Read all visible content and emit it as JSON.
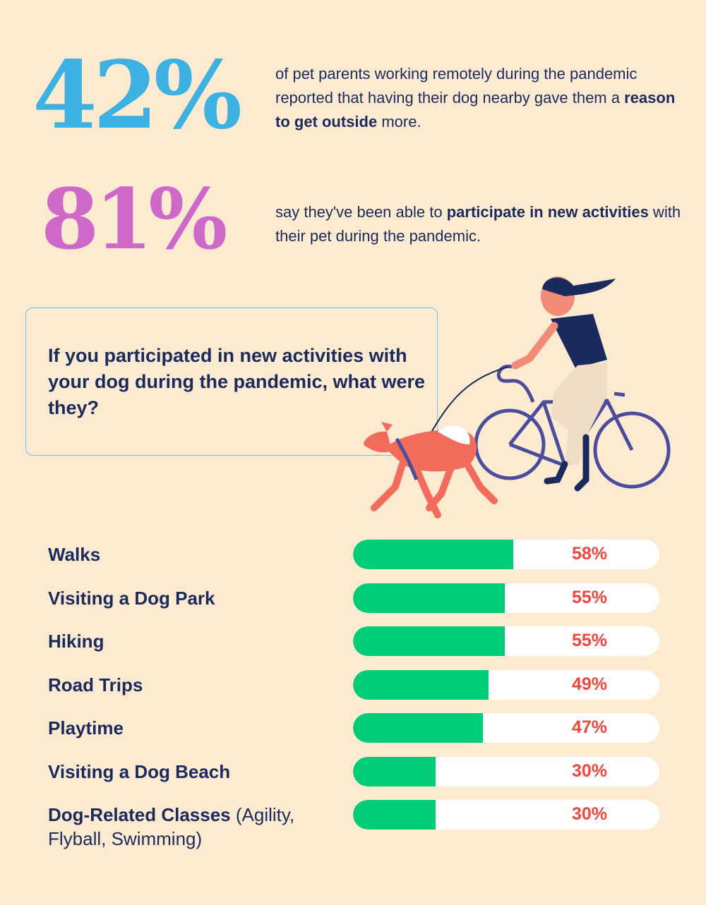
{
  "stats": [
    {
      "value": "42%",
      "text_before": "of pet parents working remotely during the pandemic reported that having their dog nearby gave them a ",
      "text_bold": "reason to get outside",
      "text_after": " more.",
      "color": "#3eb1e3"
    },
    {
      "value": "81%",
      "text_before": "say they've been able to ",
      "text_bold": "participate in new activities",
      "text_after": " with their pet during the pandemic.",
      "color": "#cf69c9"
    }
  ],
  "question": "If you participated in new activities with your dog during the pandemic, what were they?",
  "colors": {
    "background": "#fdebd1",
    "bar_fill": "#00cc78",
    "bar_track": "#ffffff",
    "percent_text": "#f0463c",
    "text": "#1b2a5c"
  },
  "chart_data": {
    "type": "bar",
    "orientation": "horizontal",
    "categories": [
      "Walks",
      "Visiting a Dog Park",
      "Hiking",
      "Road Trips",
      "Playtime",
      "Visiting a Dog Beach",
      "Dog-Related Classes"
    ],
    "category_notes": [
      "",
      "",
      "",
      "",
      "",
      "",
      "(Agility, Flyball, Swimming)"
    ],
    "values": [
      58,
      55,
      55,
      49,
      47,
      30,
      30
    ],
    "value_labels": [
      "58%",
      "55%",
      "55%",
      "49%",
      "47%",
      "30%",
      "30%"
    ],
    "xlim": [
      0,
      100
    ]
  }
}
